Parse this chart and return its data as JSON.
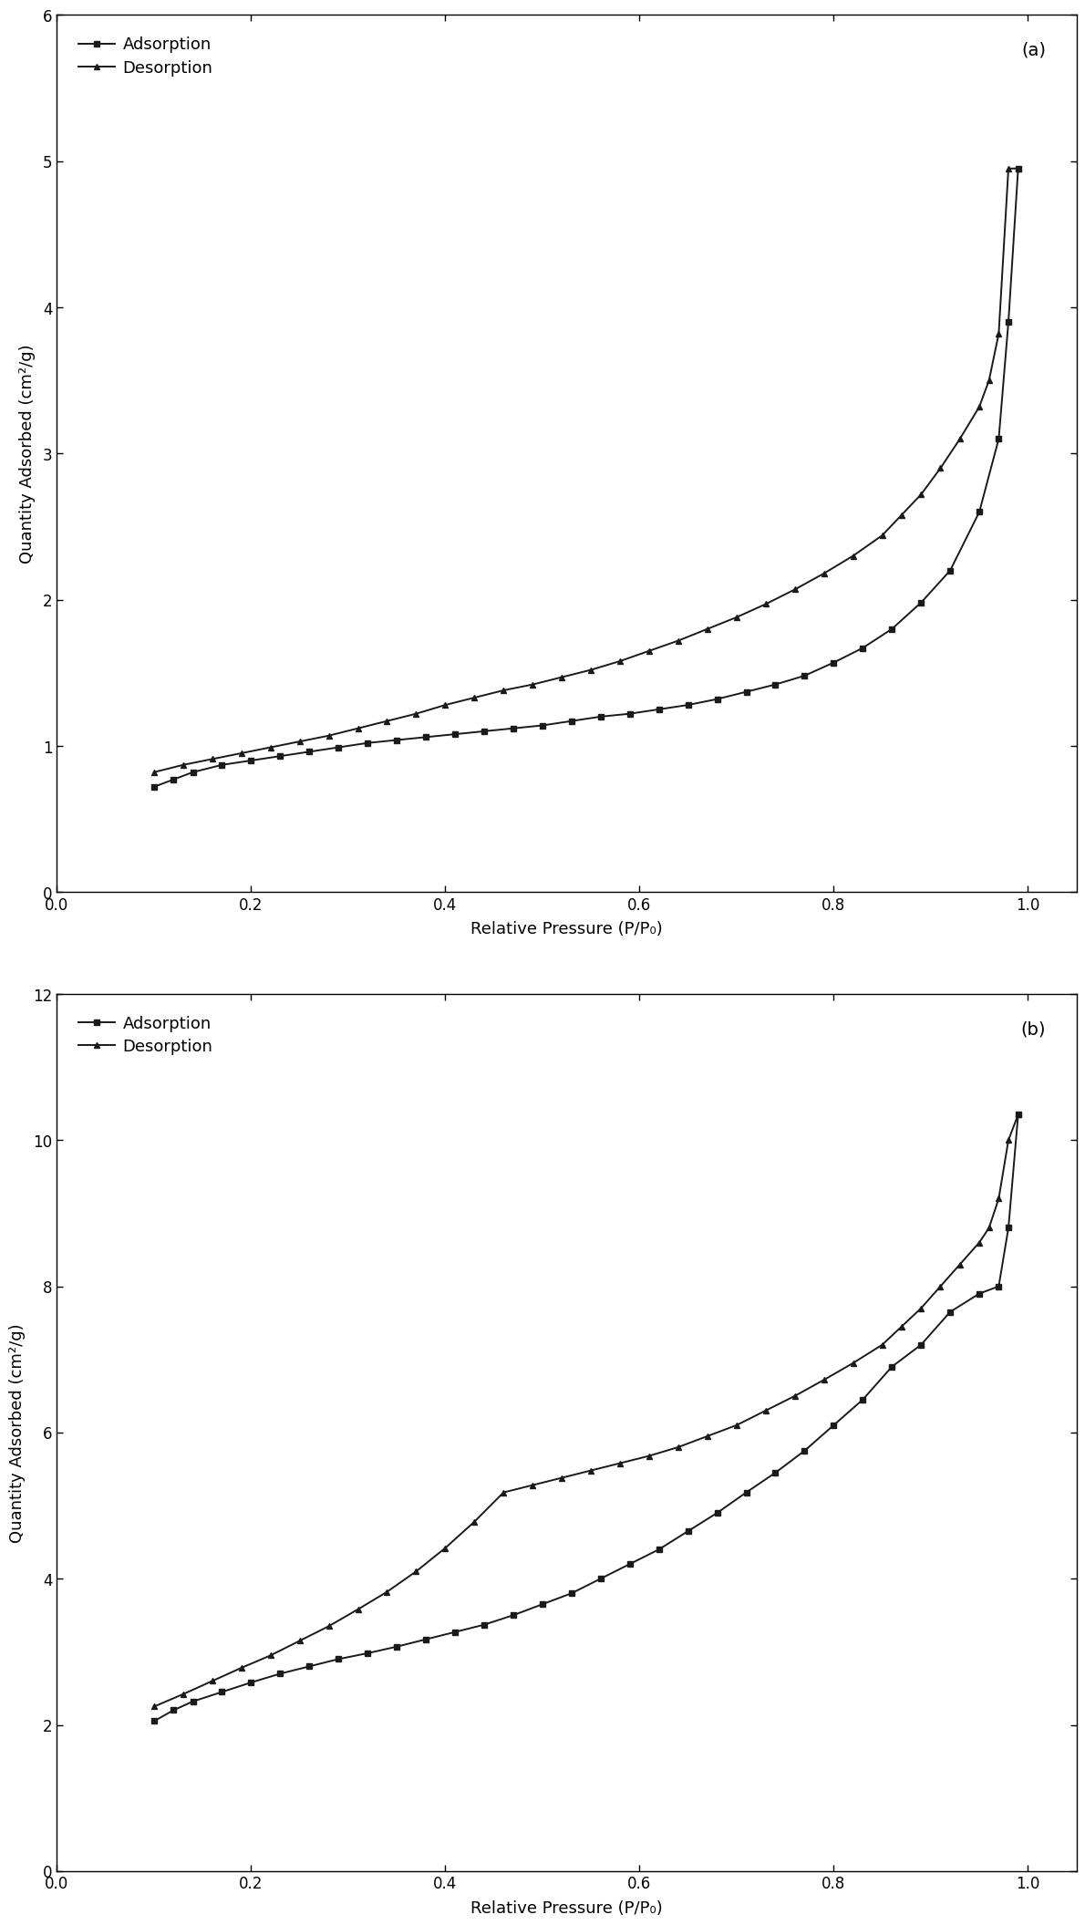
{
  "panel_a": {
    "label": "(a)",
    "adsorption_x": [
      0.1,
      0.12,
      0.14,
      0.17,
      0.2,
      0.23,
      0.26,
      0.29,
      0.32,
      0.35,
      0.38,
      0.41,
      0.44,
      0.47,
      0.5,
      0.53,
      0.56,
      0.59,
      0.62,
      0.65,
      0.68,
      0.71,
      0.74,
      0.77,
      0.8,
      0.83,
      0.86,
      0.89,
      0.92,
      0.95,
      0.97,
      0.98,
      0.99
    ],
    "adsorption_y": [
      0.72,
      0.77,
      0.82,
      0.87,
      0.9,
      0.93,
      0.96,
      0.99,
      1.02,
      1.04,
      1.06,
      1.08,
      1.1,
      1.12,
      1.14,
      1.17,
      1.2,
      1.22,
      1.25,
      1.28,
      1.32,
      1.37,
      1.42,
      1.48,
      1.57,
      1.67,
      1.8,
      1.98,
      2.2,
      2.6,
      3.1,
      3.9,
      4.95
    ],
    "desorption_x": [
      0.99,
      0.98,
      0.97,
      0.96,
      0.95,
      0.93,
      0.91,
      0.89,
      0.87,
      0.85,
      0.82,
      0.79,
      0.76,
      0.73,
      0.7,
      0.67,
      0.64,
      0.61,
      0.58,
      0.55,
      0.52,
      0.49,
      0.46,
      0.43,
      0.4,
      0.37,
      0.34,
      0.31,
      0.28,
      0.25,
      0.22,
      0.19,
      0.16,
      0.13,
      0.1
    ],
    "desorption_y": [
      4.95,
      4.95,
      3.82,
      3.5,
      3.32,
      3.1,
      2.9,
      2.72,
      2.58,
      2.44,
      2.3,
      2.18,
      2.07,
      1.97,
      1.88,
      1.8,
      1.72,
      1.65,
      1.58,
      1.52,
      1.47,
      1.42,
      1.38,
      1.33,
      1.28,
      1.22,
      1.17,
      1.12,
      1.07,
      1.03,
      0.99,
      0.95,
      0.91,
      0.87,
      0.82
    ],
    "ylim": [
      0,
      6
    ],
    "yticks": [
      0,
      1,
      2,
      3,
      4,
      5,
      6
    ],
    "xlim": [
      0.0,
      1.05
    ],
    "xticks": [
      0.0,
      0.2,
      0.4,
      0.6,
      0.8,
      1.0
    ],
    "xlabel": "Relative Pressure (P/P₀)",
    "ylabel": "Quantity Adsorbed (cm²/g)"
  },
  "panel_b": {
    "label": "(b)",
    "adsorption_x": [
      0.1,
      0.12,
      0.14,
      0.17,
      0.2,
      0.23,
      0.26,
      0.29,
      0.32,
      0.35,
      0.38,
      0.41,
      0.44,
      0.47,
      0.5,
      0.53,
      0.56,
      0.59,
      0.62,
      0.65,
      0.68,
      0.71,
      0.74,
      0.77,
      0.8,
      0.83,
      0.86,
      0.89,
      0.92,
      0.95,
      0.97,
      0.98,
      0.99
    ],
    "adsorption_y": [
      2.05,
      2.2,
      2.32,
      2.45,
      2.58,
      2.7,
      2.8,
      2.9,
      2.98,
      3.07,
      3.17,
      3.27,
      3.37,
      3.5,
      3.65,
      3.8,
      4.0,
      4.2,
      4.4,
      4.65,
      4.9,
      5.18,
      5.45,
      5.75,
      6.1,
      6.45,
      6.9,
      7.2,
      7.65,
      7.9,
      8.0,
      8.8,
      10.35
    ],
    "desorption_x": [
      0.99,
      0.98,
      0.97,
      0.96,
      0.95,
      0.93,
      0.91,
      0.89,
      0.87,
      0.85,
      0.82,
      0.79,
      0.76,
      0.73,
      0.7,
      0.67,
      0.64,
      0.61,
      0.58,
      0.55,
      0.52,
      0.49,
      0.46,
      0.43,
      0.4,
      0.37,
      0.34,
      0.31,
      0.28,
      0.25,
      0.22,
      0.19,
      0.16,
      0.13,
      0.1
    ],
    "desorption_y": [
      10.35,
      10.0,
      9.2,
      8.8,
      8.6,
      8.3,
      8.0,
      7.7,
      7.45,
      7.2,
      6.95,
      6.72,
      6.5,
      6.3,
      6.1,
      5.95,
      5.8,
      5.68,
      5.58,
      5.48,
      5.38,
      5.28,
      5.18,
      4.78,
      4.42,
      4.1,
      3.82,
      3.58,
      3.35,
      3.15,
      2.95,
      2.78,
      2.6,
      2.42,
      2.25
    ],
    "ylim": [
      0,
      12
    ],
    "yticks": [
      0,
      2,
      4,
      6,
      8,
      10,
      12
    ],
    "xlim": [
      0.0,
      1.05
    ],
    "xticks": [
      0.0,
      0.2,
      0.4,
      0.6,
      0.8,
      1.0
    ],
    "xlabel": "Relative Pressure (P/P₀)",
    "ylabel": "Quantity Adsorbed (cm²/g)"
  },
  "line_color": "#1a1a1a",
  "marker_square": "s",
  "marker_triangle": "^",
  "marker_size": 5,
  "line_width": 1.4,
  "legend_adsorption": "Adsorption",
  "legend_desorption": "Desorption",
  "bg_color": "#ffffff",
  "label_fontsize": 13,
  "tick_fontsize": 12,
  "legend_fontsize": 13,
  "annot_fontsize": 14
}
